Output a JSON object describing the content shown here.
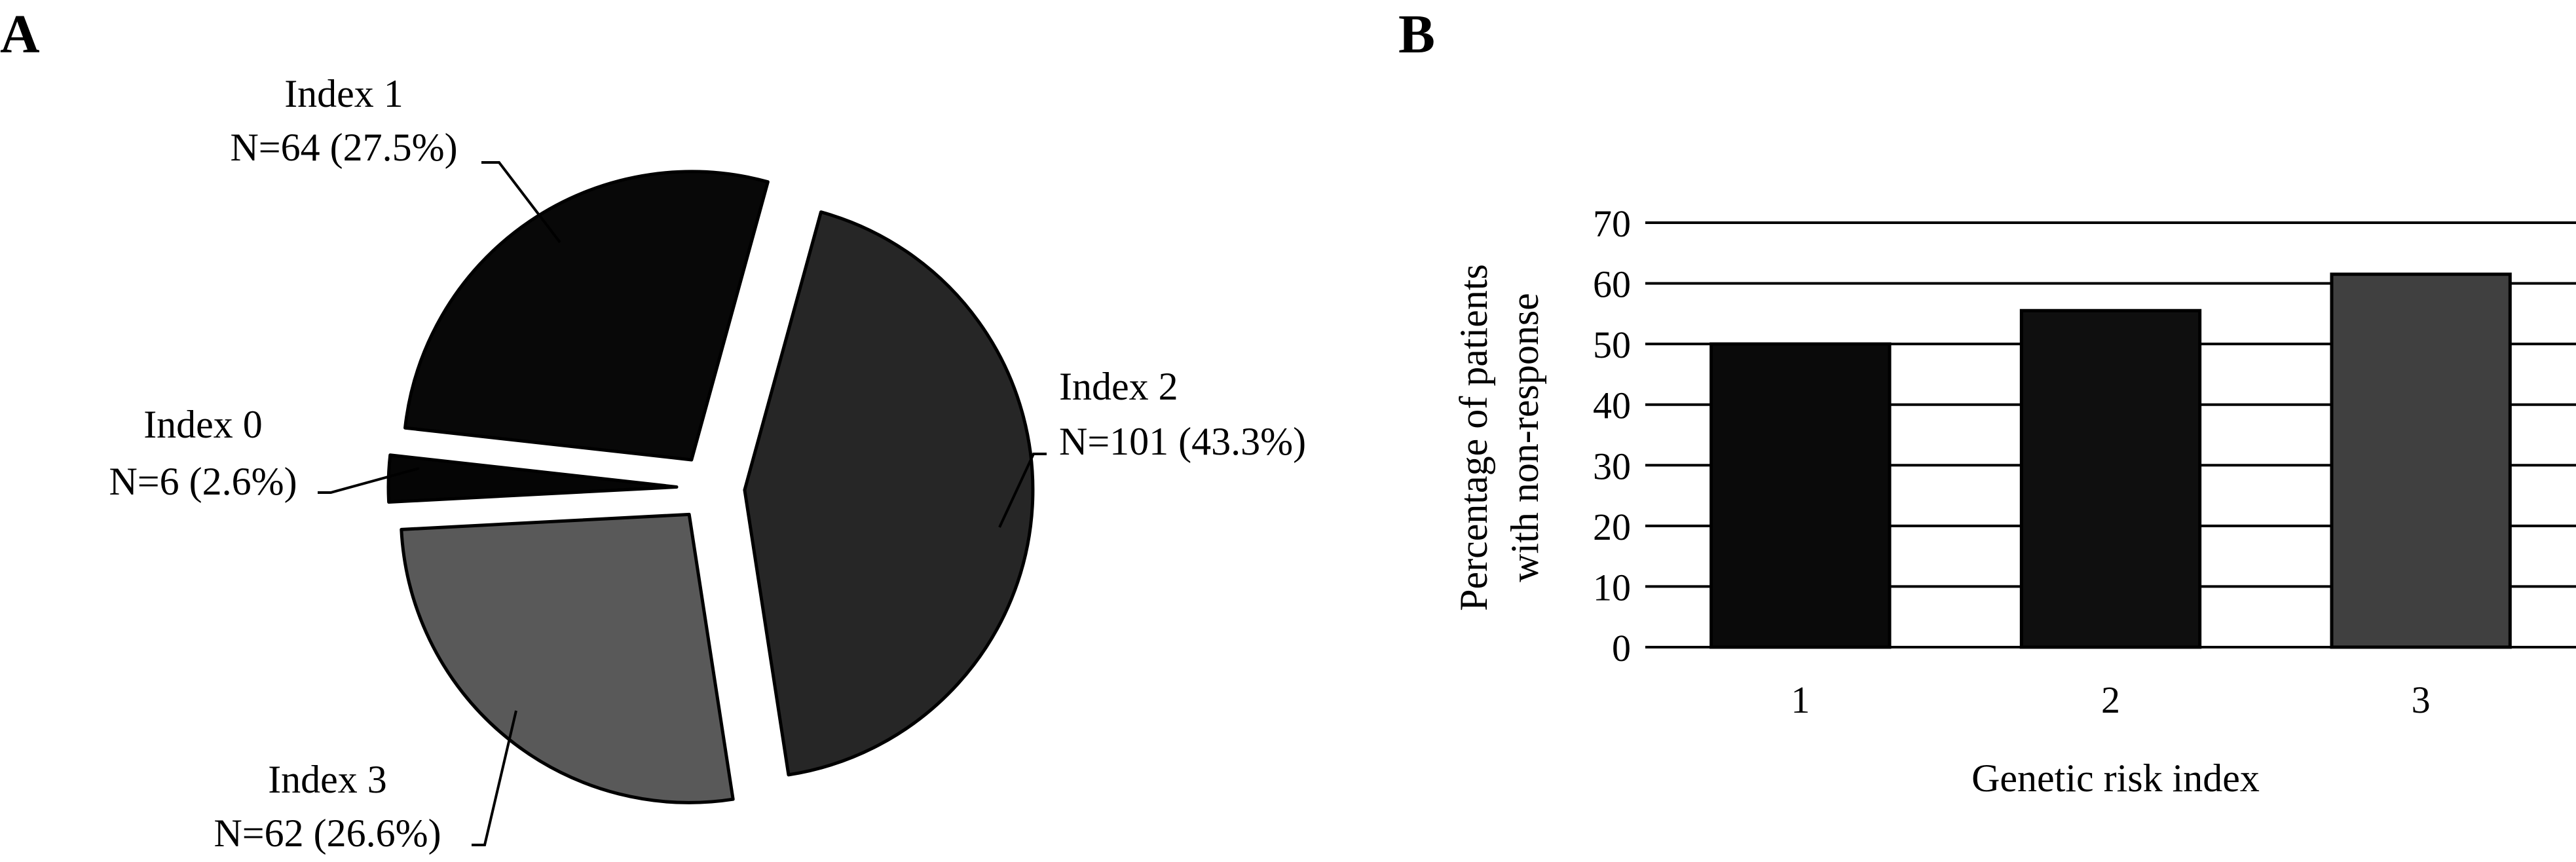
{
  "panel_labels": {
    "a": "A",
    "b": "B"
  },
  "chart_data": [
    {
      "type": "pie",
      "slices": [
        {
          "label": "Index 0",
          "annotation": "N=6 (2.6%)",
          "n": 6,
          "percent": 2.6,
          "color": "#050505"
        },
        {
          "label": "Index 1",
          "annotation": "N=64 (27.5%)",
          "n": 64,
          "percent": 27.5,
          "color": "#080808"
        },
        {
          "label": "Index 2",
          "annotation": "N=101 (43.3%)",
          "n": 101,
          "percent": 43.3,
          "color": "#262626"
        },
        {
          "label": "Index 3",
          "annotation": "N=62 (26.6%)",
          "n": 62,
          "percent": 26.6,
          "color": "#595959"
        }
      ],
      "exploded": true,
      "legend": "none"
    },
    {
      "type": "bar",
      "categories": [
        "1",
        "2",
        "3"
      ],
      "series": [
        {
          "values": [
            50,
            55.5,
            61.5
          ]
        }
      ],
      "bar_colors": [
        "#0a0a0a",
        "#0f0f0f",
        "#404040"
      ],
      "xlabel": "Genetic risk index",
      "ylabel_lines": [
        "Percentage of patients",
        "with non-response"
      ],
      "ylim": [
        0,
        70
      ],
      "yticks": [
        "0",
        "10",
        "20",
        "30",
        "40",
        "50",
        "60",
        "70"
      ],
      "grid": "horizontal",
      "legend": "none"
    }
  ]
}
